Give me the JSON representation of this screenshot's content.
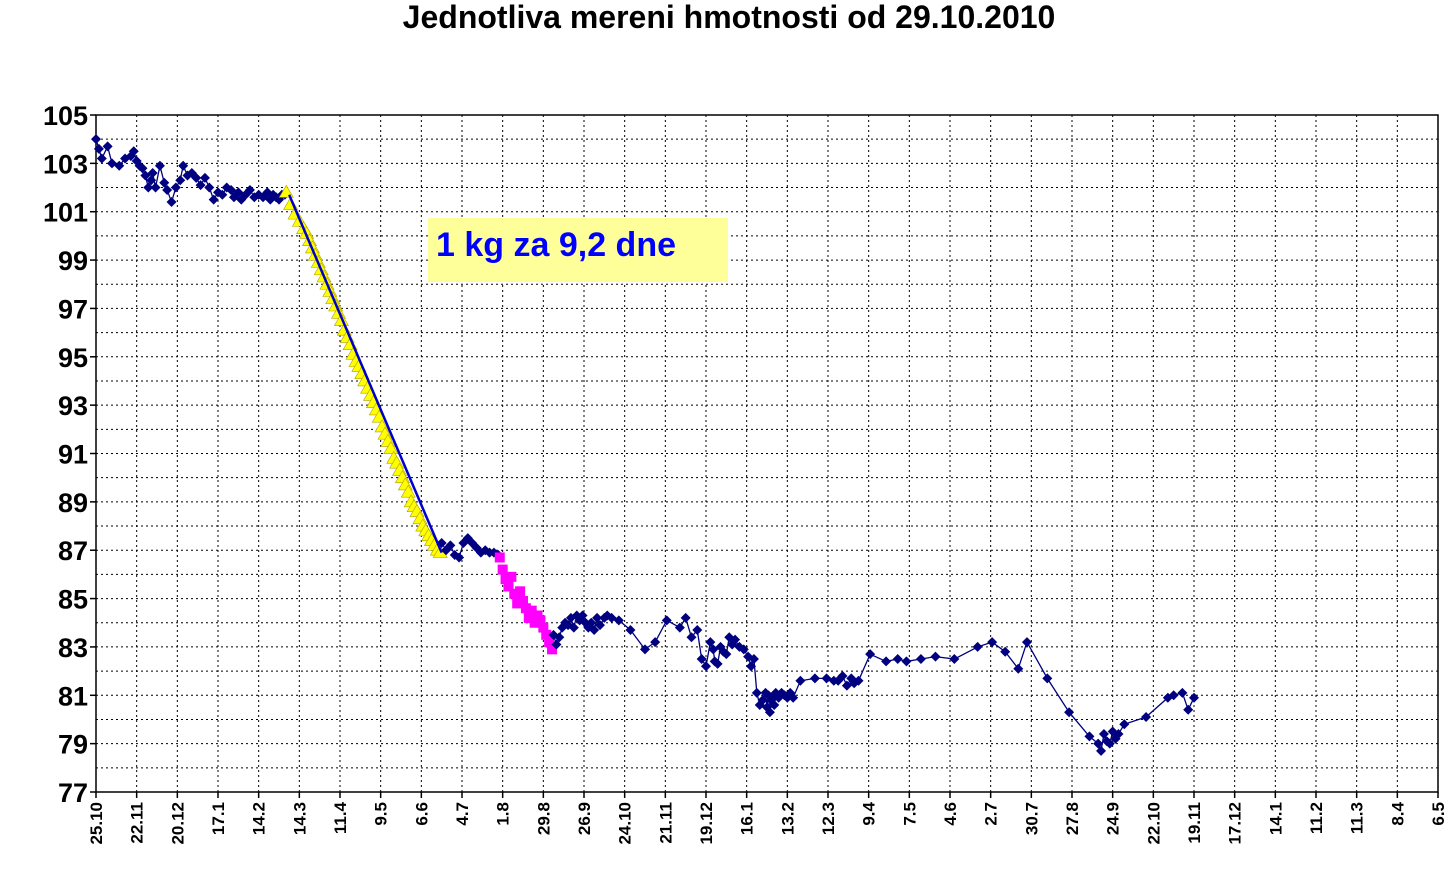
{
  "chart_data": {
    "type": "scatter",
    "title": "Jednotliva mereni hmotnosti od 29.10.2010",
    "xlabel": "",
    "ylabel": "",
    "ylim": [
      77,
      105
    ],
    "y_ticks": [
      105,
      103,
      101,
      99,
      97,
      95,
      93,
      91,
      89,
      87,
      85,
      83,
      81,
      79,
      77
    ],
    "x_ticks": [
      "25.10",
      "22.11",
      "20.12",
      "17.1",
      "14.2",
      "14.3",
      "11.4",
      "9.5",
      "6.6",
      "4.7",
      "1.8",
      "29.8",
      "26.9",
      "24.10",
      "21.11",
      "19.12",
      "16.1",
      "13.2",
      "12.3",
      "9.4",
      "7.5",
      "4.6",
      "2.7",
      "30.7",
      "27.8",
      "24.9",
      "22.10",
      "19.11",
      "17.12",
      "14.1",
      "11.2",
      "11.3",
      "8.4",
      "6.5"
    ],
    "x_tick_step_days": 28,
    "grid": true,
    "legend": "none",
    "annotation": {
      "text": "1 kg za 9,2 dne",
      "text_color": "#0000ff",
      "box_color": "#ffff99"
    },
    "colors": {
      "main": "#000080",
      "yellow_phase": "#ffff00",
      "magenta_phase": "#ff00ff",
      "trendline": "#0000cc"
    },
    "trendline": {
      "from": [
        133,
        101.7
      ],
      "to": [
        238,
        86.9
      ]
    },
    "series": [
      {
        "color": "#000080",
        "style": "line-markers",
        "x": [
          0,
          2,
          4,
          8,
          11,
          16,
          20,
          24,
          26,
          28,
          30,
          32,
          34,
          36,
          38,
          39,
          41,
          44,
          47,
          49,
          52,
          55,
          58,
          60,
          63,
          66,
          69,
          72,
          75,
          78,
          81,
          84,
          87,
          90,
          93,
          95,
          98,
          100,
          103,
          106,
          109,
          112,
          115,
          118,
          120,
          122,
          124,
          126,
          128,
          130
        ],
        "y": [
          104.0,
          103.6,
          103.2,
          103.7,
          103.0,
          102.9,
          103.2,
          103.3,
          103.5,
          103.1,
          102.9,
          102.8,
          102.5,
          102.0,
          102.3,
          102.6,
          102.0,
          102.9,
          102.2,
          101.9,
          101.4,
          102.0,
          102.3,
          102.9,
          102.5,
          102.6,
          102.4,
          102.1,
          102.4,
          102.0,
          101.5,
          101.8,
          101.7,
          102.0,
          101.9,
          101.6,
          101.8,
          101.5,
          101.7,
          101.9,
          101.6,
          101.7,
          101.6,
          101.8,
          101.5,
          101.7,
          101.6,
          101.5,
          101.7,
          101.7
        ]
      },
      {
        "color": "#ffff00",
        "style": "markers",
        "x": [
          131,
          134,
          137,
          140,
          143,
          145,
          147,
          149,
          151,
          153,
          155,
          157,
          159,
          161,
          163,
          165,
          167,
          169,
          171,
          173,
          175,
          177,
          179,
          181,
          183,
          185,
          187,
          189,
          191,
          193,
          195,
          197,
          199,
          201,
          203,
          205,
          207,
          209,
          211,
          213,
          215,
          217,
          219,
          221,
          223,
          225,
          227,
          229,
          231,
          233,
          235,
          237
        ],
        "y": [
          101.8,
          101.3,
          100.9,
          100.6,
          100.3,
          100.1,
          99.8,
          99.5,
          99.2,
          98.9,
          98.6,
          98.3,
          98.0,
          97.7,
          97.4,
          97.1,
          96.8,
          96.5,
          96.1,
          95.8,
          95.5,
          95.1,
          94.8,
          94.6,
          94.3,
          94.0,
          93.7,
          93.4,
          93.1,
          92.8,
          92.5,
          92.1,
          91.8,
          91.5,
          91.2,
          90.8,
          90.6,
          90.3,
          90.0,
          89.7,
          89.4,
          89.0,
          88.8,
          88.6,
          88.3,
          88.0,
          87.8,
          87.6,
          87.4,
          87.2,
          87.0,
          86.9
        ]
      },
      {
        "color": "#000080",
        "style": "line-markers",
        "x": [
          238,
          241,
          244,
          247,
          250,
          253,
          256,
          259,
          262,
          265,
          268,
          271,
          274,
          277
        ],
        "y": [
          87.3,
          87.0,
          87.2,
          86.8,
          86.7,
          87.3,
          87.5,
          87.3,
          87.1,
          86.9,
          87.0,
          86.9,
          86.9,
          86.8
        ]
      },
      {
        "color": "#ff00ff",
        "style": "markers",
        "x": [
          278,
          280,
          282,
          284,
          286,
          288,
          290,
          292,
          294,
          296,
          298,
          300,
          302,
          304,
          306,
          308,
          310,
          312,
          314
        ],
        "y": [
          86.7,
          86.2,
          85.8,
          85.5,
          85.9,
          85.2,
          84.8,
          85.3,
          84.9,
          84.6,
          84.2,
          84.5,
          84.0,
          84.3,
          84.1,
          83.8,
          83.5,
          83.2,
          82.9
        ]
      },
      {
        "color": "#000080",
        "style": "line-markers",
        "x": [
          315,
          317,
          319,
          321,
          323,
          325,
          327,
          329,
          331,
          333,
          335,
          337,
          339,
          341,
          343,
          345,
          347,
          350,
          352,
          355,
          360,
          368,
          378,
          385,
          393,
          402,
          406,
          410,
          414,
          417,
          420,
          423,
          425,
          426,
          428,
          430,
          432,
          434,
          436,
          438,
          440,
          443,
          446,
          449,
          451,
          453,
          455,
          457,
          459,
          461,
          462,
          463,
          464,
          465,
          466,
          467,
          468,
          470,
          472,
          474,
          476,
          478,
          480,
          485,
          495,
          503,
          508,
          511,
          514,
          517,
          520,
          522,
          525,
          533,
          544,
          552,
          558,
          568,
          578,
          591,
          607,
          617,
          626,
          635,
          641,
          655,
          670,
          684,
          690,
          692,
          694,
          696,
          698,
          700,
          702,
          704,
          708,
          723,
          738,
          742,
          748,
          752,
          756
        ],
        "y": [
          83.5,
          83.1,
          83.4,
          83.8,
          84.0,
          83.9,
          84.2,
          83.8,
          84.3,
          84.1,
          84.3,
          84.0,
          83.8,
          84.0,
          83.7,
          84.2,
          83.9,
          84.2,
          84.3,
          84.2,
          84.1,
          83.7,
          82.9,
          83.2,
          84.1,
          83.8,
          84.2,
          83.4,
          83.7,
          82.5,
          82.2,
          83.2,
          82.9,
          82.4,
          82.3,
          83.0,
          82.8,
          82.7,
          83.4,
          83.1,
          83.3,
          83.0,
          82.9,
          82.6,
          82.2,
          82.5,
          81.1,
          80.6,
          80.8,
          81.1,
          80.5,
          81.0,
          80.3,
          80.8,
          80.9,
          80.6,
          81.1,
          80.9,
          81.1,
          81.0,
          80.9,
          81.1,
          80.9,
          81.6,
          81.7,
          81.7,
          81.6,
          81.6,
          81.8,
          81.4,
          81.7,
          81.5,
          81.6,
          82.7,
          82.4,
          82.5,
          82.4,
          82.5,
          82.6,
          82.5,
          83.0,
          83.2,
          82.8,
          82.1,
          83.2,
          81.7,
          80.3,
          79.3,
          79.0,
          78.7,
          79.4,
          79.1,
          79.0,
          79.5,
          79.2,
          79.4,
          79.8,
          80.1,
          80.9,
          81.0,
          81.1,
          80.4,
          80.9
        ]
      }
    ]
  }
}
